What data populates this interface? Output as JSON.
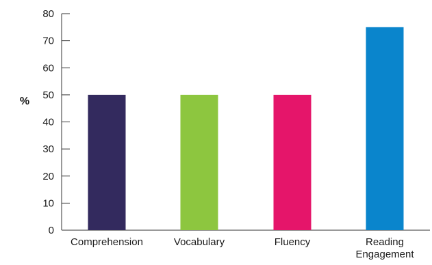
{
  "chart_data": {
    "type": "bar",
    "title": "",
    "xlabel": "",
    "ylabel": "%",
    "ylim": [
      0,
      80
    ],
    "yticks": [
      0,
      10,
      20,
      30,
      40,
      50,
      60,
      70,
      80
    ],
    "grid": false,
    "categories": [
      "Comprehension",
      "Vocabulary",
      "Fluency",
      "Reading Engagement"
    ],
    "values": [
      50,
      50,
      50,
      75
    ],
    "colors": [
      "#332a5e",
      "#8dc63f",
      "#e5156a",
      "#0a85cc"
    ]
  }
}
